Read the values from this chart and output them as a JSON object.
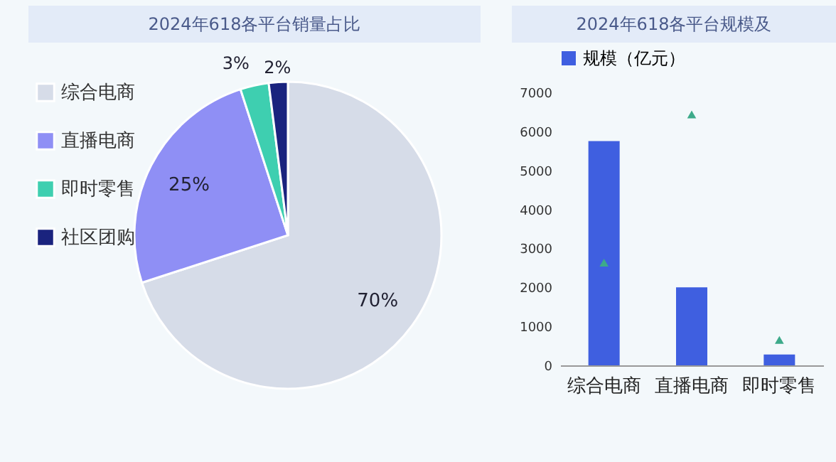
{
  "chart_data": [
    {
      "type": "pie",
      "title": "2024年618各平台销量占比",
      "categories": [
        "综合电商",
        "直播电商",
        "即时零售",
        "社区团购"
      ],
      "values": [
        70,
        25,
        3,
        2
      ],
      "colors": [
        "#d6dce8",
        "#8f8ff5",
        "#3ecfb0",
        "#1a237e"
      ],
      "value_labels": [
        "70%",
        "25%",
        "3%",
        "2%"
      ],
      "legend": "left"
    },
    {
      "type": "bar",
      "title": "2024年618各平台规模及",
      "categories": [
        "综合电商",
        "直播电商",
        "即时零售"
      ],
      "series": [
        {
          "name": "规模（亿元）",
          "color": "#3f5fe0",
          "values": [
            5750,
            2000,
            280
          ]
        },
        {
          "type": "scatter",
          "color": "#3daa8a",
          "marker": "triangle",
          "values": [
            2600,
            6400,
            620
          ]
        }
      ],
      "ylim": [
        0,
        7000
      ],
      "yticks": [
        0,
        1000,
        2000,
        3000,
        4000,
        5000,
        6000,
        7000
      ],
      "legend": "top"
    }
  ]
}
